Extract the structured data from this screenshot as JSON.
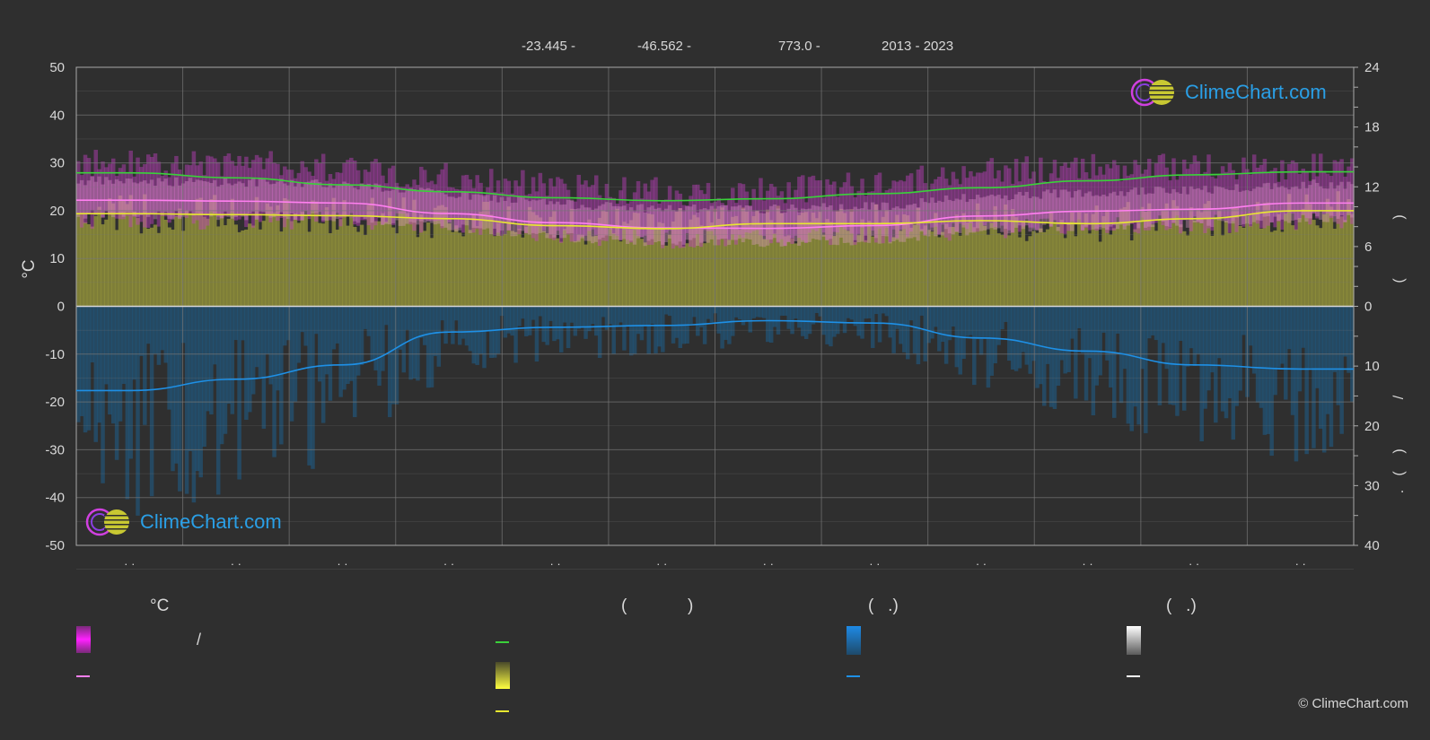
{
  "header": {
    "lat": "-23.445 -",
    "lon": "-46.562 -",
    "elev": "773.0 -",
    "years": "2013 - 2023"
  },
  "axis": {
    "left_unit": "°C",
    "right_tick_values_top": [
      24,
      18,
      12,
      6,
      0
    ],
    "right_tick_values_bottom": [
      10,
      20,
      30,
      40
    ],
    "right_label_marks": [
      ")",
      "(",
      "/",
      ")",
      "(",
      "."
    ],
    "x_tick_label": "· ·"
  },
  "legend": {
    "col1_header": "°C",
    "col2_header_left": "(",
    "col2_header_right": ")",
    "col3_header": "(   .)",
    "col4_header": "(   .)",
    "slash": "/"
  },
  "logo": {
    "text": "ClimeChart.com"
  },
  "copyright": "© ClimeChart.com",
  "colors": {
    "background": "#2f2f2f",
    "grid": "#777777",
    "max_temp_band": "#c040c0",
    "mean_temp_band": "#e59ad0",
    "sun_band": "#9a9a3c",
    "rain_band": "#1e5f8c",
    "daylight_line": "#3ad13a",
    "sunshine_line": "#e8e830",
    "mean_temp_line": "#ff7ff0",
    "rain_line": "#1e90e6"
  },
  "chart_data": {
    "type": "area",
    "y_left_range": [
      -50,
      50
    ],
    "y_left_ticks": [
      50,
      40,
      30,
      20,
      10,
      0,
      -10,
      -20,
      -30,
      -40,
      -50
    ],
    "y_right_top_range": [
      0,
      24
    ],
    "y_right_top_ticks": [
      24,
      18,
      12,
      6,
      0
    ],
    "y_right_bottom_range": [
      0,
      40
    ],
    "y_right_bottom_ticks": [
      0,
      10,
      20,
      30,
      40
    ],
    "months": 12,
    "grid": true,
    "series": [
      {
        "key": "daylight",
        "values": [
          13.4,
          12.9,
          12.2,
          11.5,
          10.9,
          10.6,
          10.8,
          11.3,
          11.9,
          12.6,
          13.2,
          13.5
        ]
      },
      {
        "key": "mean_temp",
        "values": [
          22.2,
          22.0,
          21.6,
          19.4,
          17.5,
          16.4,
          16.3,
          16.9,
          18.9,
          19.9,
          20.3,
          21.6
        ]
      },
      {
        "key": "sunshine",
        "values": [
          9.3,
          9.2,
          9.1,
          8.8,
          8.1,
          7.8,
          8.3,
          8.3,
          8.6,
          8.3,
          8.8,
          9.6
        ]
      },
      {
        "key": "precip",
        "values": [
          14.1,
          12.2,
          9.8,
          4.3,
          3.5,
          3.2,
          2.4,
          2.8,
          5.3,
          7.5,
          9.8,
          10.5
        ]
      }
    ],
    "max_temp_band": {
      "low": [
        20,
        20,
        20,
        19,
        17,
        16,
        16,
        17,
        18,
        19,
        19,
        20
      ],
      "high": [
        30,
        30,
        29,
        27,
        25,
        24,
        24,
        26,
        28,
        29,
        29,
        29
      ]
    }
  }
}
